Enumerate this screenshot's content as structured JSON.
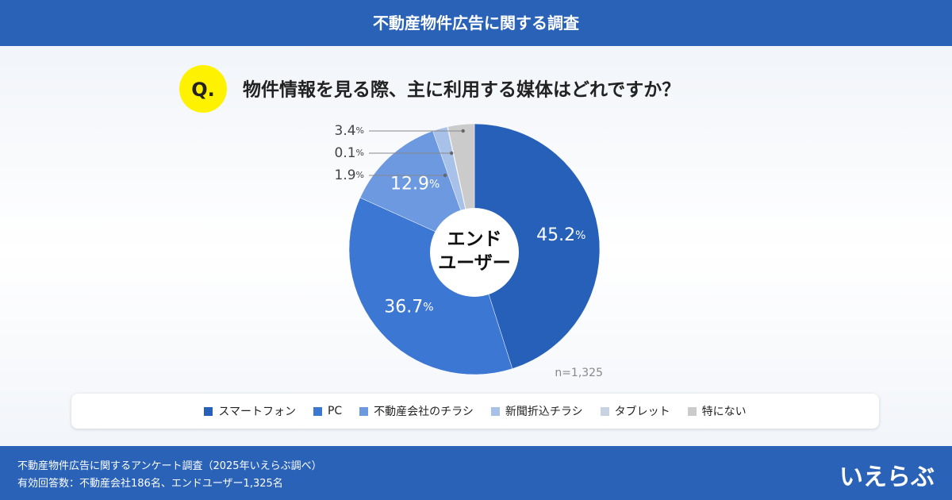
{
  "chart_data": {
    "type": "pie",
    "title": "不動産物件広告に関する調査",
    "question_marker": "Q.",
    "question": "物件情報を見る際、主に利用する媒体はどれですか？",
    "categories": [
      "スマートフォン",
      "PC",
      "不動産会社のチラシ",
      "新聞折込チラシ",
      "タブレット",
      "特にない"
    ],
    "values": [
      45.2,
      36.7,
      12.9,
      1.9,
      0.1,
      3.4
    ],
    "value_labels": [
      "45.2%",
      "36.7%",
      "12.9%",
      "1.9%",
      "0.1%",
      "3.4%"
    ],
    "colors": [
      "#2660b9",
      "#3c78d3",
      "#6c99e0",
      "#a8c1e8",
      "#c7d2e2",
      "#cbcbcb"
    ],
    "center_label": [
      "エンド",
      "ユーザー"
    ],
    "note": "n=1,325",
    "legend": "bottom"
  },
  "footer": {
    "lines": [
      "不動産物件広告に関するアンケート調査（2025年いえらぶ調べ）",
      "有効回答数：不動産会社186名、エンドユーザー1,325名"
    ],
    "logo": "いえらぶ"
  }
}
